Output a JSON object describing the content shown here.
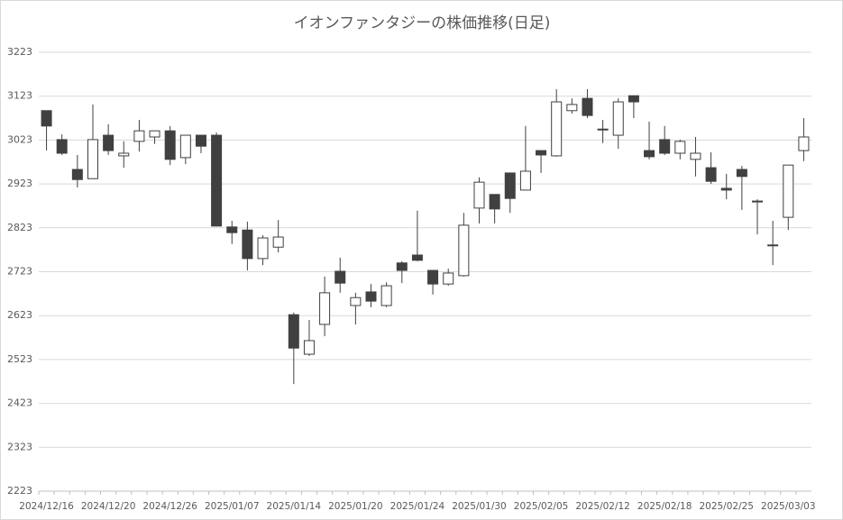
{
  "chart_data": {
    "type": "candlestick",
    "title": "イオンファンタジーの株価推移(日足)",
    "categories": [
      "2024/12/16",
      null,
      null,
      null,
      "2024/12/20",
      null,
      null,
      null,
      "2024/12/26",
      null,
      null,
      null,
      "2025/01/07",
      null,
      null,
      null,
      "2025/01/14",
      null,
      null,
      null,
      "2025/01/20",
      null,
      null,
      null,
      "2025/01/24",
      null,
      null,
      null,
      "2025/01/30",
      null,
      null,
      null,
      "2025/02/05",
      null,
      null,
      null,
      "2025/02/12",
      null,
      null,
      null,
      "2025/02/18",
      null,
      null,
      null,
      "2025/02/25",
      null,
      null,
      null,
      "2025/03/03",
      null
    ],
    "series": [
      {
        "open": [
          3090,
          3024,
          2956,
          2935,
          3034,
          2987,
          3020,
          3030,
          3044,
          2983,
          3034,
          3034,
          2825,
          2818,
          2753,
          2779,
          2625,
          2535,
          2603,
          2724,
          2646,
          2677,
          2646,
          2743,
          2761,
          2726,
          2695,
          2714,
          2868,
          2899,
          2948,
          2909,
          2999,
          2987,
          3090,
          3118,
          3048,
          3034,
          3124,
          2999,
          3024,
          2993,
          2979,
          2960,
          2913,
          2956,
          2884,
          2784,
          2847,
          2999
        ],
        "high": [
          3090,
          3036,
          2989,
          3104,
          3059,
          3020,
          3069,
          3044,
          3055,
          3034,
          3034,
          3040,
          2839,
          2837,
          2806,
          2841,
          2630,
          2613,
          2712,
          2755,
          2675,
          2695,
          2699,
          2747,
          2862,
          2726,
          2730,
          2857,
          2938,
          2899,
          2948,
          3055,
          2999,
          3139,
          3118,
          3139,
          3069,
          3118,
          3124,
          3065,
          3055,
          3024,
          3030,
          2995,
          2946,
          2964,
          2888,
          2839,
          2966,
          3073
        ],
        "low": [
          2999,
          2989,
          2915,
          2935,
          2989,
          2960,
          2997,
          3014,
          2966,
          2968,
          2993,
          2827,
          2786,
          2726,
          2738,
          2767,
          2467,
          2531,
          2576,
          2675,
          2603,
          2642,
          2642,
          2697,
          2747,
          2671,
          2691,
          2712,
          2833,
          2833,
          2857,
          2909,
          2948,
          2985,
          3083,
          3073,
          3016,
          3003,
          3073,
          2979,
          2989,
          2979,
          2940,
          2923,
          2888,
          2864,
          2808,
          2738,
          2818,
          2975
        ],
        "close": [
          3055,
          2993,
          2933,
          3024,
          2999,
          2993,
          3044,
          3044,
          2979,
          3034,
          3009,
          2827,
          2812,
          2753,
          2800,
          2802,
          2549,
          2566,
          2675,
          2697,
          2664,
          2656,
          2691,
          2726,
          2749,
          2695,
          2720,
          2829,
          2927,
          2866,
          2890,
          2952,
          2989,
          3110,
          3104,
          3079,
          3046,
          3110,
          3110,
          2985,
          2993,
          3020,
          2993,
          2929,
          2909,
          2940,
          2882,
          2782,
          2966,
          3030
        ],
        "up_color": "#ffffff",
        "down_color": "#404040"
      }
    ],
    "ylim": [
      2223,
      3223
    ],
    "yticks": [
      2223,
      2323,
      2423,
      2523,
      2623,
      2723,
      2823,
      2923,
      3023,
      3123,
      3223
    ],
    "grid": true
  }
}
